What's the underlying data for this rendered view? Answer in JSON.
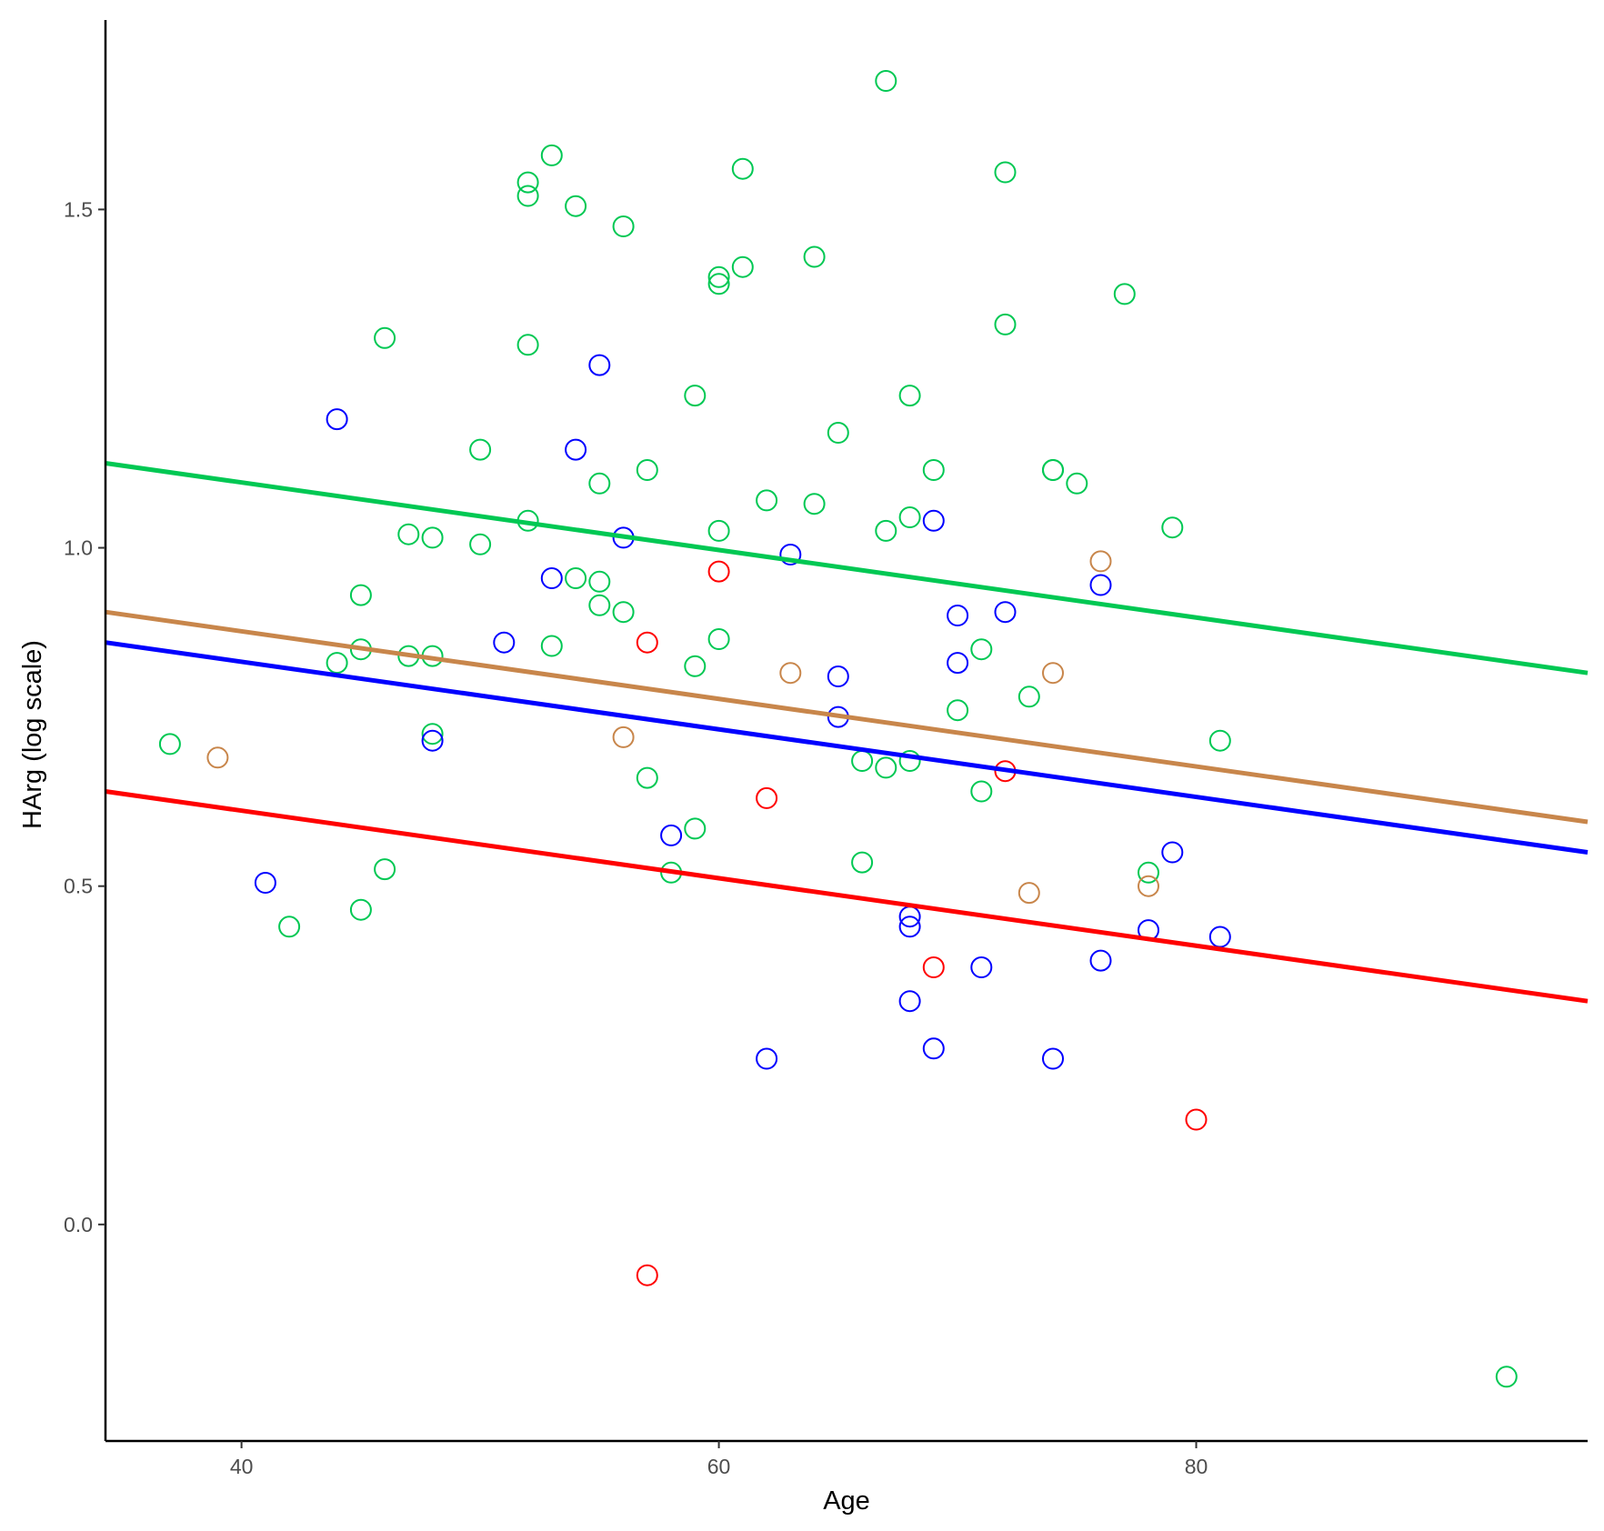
{
  "chart_data": {
    "type": "scatter",
    "title": "",
    "xlabel": "Age",
    "ylabel": "HArg (log scale)",
    "xlim": [
      34.3,
      96.4
    ],
    "ylim": [
      -0.32,
      1.78
    ],
    "x_ticks": [
      {
        "value": 40,
        "label": "40"
      },
      {
        "value": 60,
        "label": "60"
      },
      {
        "value": 80,
        "label": "80"
      }
    ],
    "y_ticks": [
      {
        "value": 0.0,
        "label": "0.0"
      },
      {
        "value": 0.5,
        "label": "0.5"
      },
      {
        "value": 1.0,
        "label": "1.0"
      },
      {
        "value": 1.5,
        "label": "1.5"
      }
    ],
    "grid": false,
    "legend": "none",
    "series": [
      {
        "color": "#00c853",
        "marker": "open-circle",
        "points": [
          [
            37,
            0.71
          ],
          [
            42,
            0.44
          ],
          [
            44,
            0.83
          ],
          [
            45,
            0.93
          ],
          [
            45,
            0.85
          ],
          [
            45,
            0.465
          ],
          [
            46,
            1.31
          ],
          [
            46,
            0.525
          ],
          [
            47,
            1.02
          ],
          [
            47,
            0.84
          ],
          [
            48,
            1.015
          ],
          [
            48,
            0.84
          ],
          [
            48,
            0.725
          ],
          [
            50,
            1.145
          ],
          [
            50,
            1.005
          ],
          [
            52,
            1.54
          ],
          [
            52,
            1.52
          ],
          [
            52,
            1.3
          ],
          [
            52,
            1.04
          ],
          [
            53,
            1.58
          ],
          [
            53,
            0.855
          ],
          [
            54,
            1.505
          ],
          [
            54,
            0.955
          ],
          [
            55,
            1.095
          ],
          [
            55,
            0.95
          ],
          [
            55,
            0.915
          ],
          [
            56,
            1.475
          ],
          [
            56,
            0.905
          ],
          [
            57,
            1.115
          ],
          [
            57,
            0.66
          ],
          [
            58,
            0.52
          ],
          [
            59,
            1.225
          ],
          [
            59,
            0.825
          ],
          [
            59,
            0.585
          ],
          [
            60,
            1.4
          ],
          [
            60,
            1.39
          ],
          [
            60,
            1.025
          ],
          [
            60,
            0.865
          ],
          [
            61,
            1.56
          ],
          [
            61,
            1.415
          ],
          [
            62,
            1.07
          ],
          [
            64,
            1.43
          ],
          [
            64,
            1.065
          ],
          [
            65,
            1.17
          ],
          [
            66,
            0.685
          ],
          [
            66,
            0.535
          ],
          [
            67,
            1.69
          ],
          [
            67,
            1.025
          ],
          [
            67,
            0.675
          ],
          [
            68,
            1.225
          ],
          [
            68,
            1.045
          ],
          [
            68,
            0.685
          ],
          [
            69,
            1.115
          ],
          [
            70,
            0.76
          ],
          [
            71,
            0.85
          ],
          [
            71,
            0.64
          ],
          [
            72,
            1.555
          ],
          [
            72,
            1.33
          ],
          [
            73,
            0.78
          ],
          [
            74,
            1.115
          ],
          [
            74,
            1.115
          ],
          [
            75,
            1.095
          ],
          [
            77,
            1.375
          ],
          [
            78,
            0.52
          ],
          [
            79,
            1.03
          ],
          [
            81,
            0.715
          ],
          [
            93,
            -0.225
          ]
        ]
      },
      {
        "color": "#ff0000",
        "marker": "open-circle",
        "points": [
          [
            57,
            0.86
          ],
          [
            57,
            -0.075
          ],
          [
            60,
            0.965
          ],
          [
            62,
            0.63
          ],
          [
            69,
            0.38
          ],
          [
            72,
            0.67
          ],
          [
            80,
            0.155
          ]
        ]
      },
      {
        "color": "#0000ff",
        "marker": "open-circle",
        "points": [
          [
            41,
            0.505
          ],
          [
            44,
            1.19
          ],
          [
            48,
            0.715
          ],
          [
            51,
            0.86
          ],
          [
            53,
            0.955
          ],
          [
            54,
            1.145
          ],
          [
            55,
            1.27
          ],
          [
            56,
            1.015
          ],
          [
            58,
            0.575
          ],
          [
            62,
            0.245
          ],
          [
            63,
            0.99
          ],
          [
            65,
            0.81
          ],
          [
            65,
            0.75
          ],
          [
            68,
            0.455
          ],
          [
            68,
            0.44
          ],
          [
            68,
            0.33
          ],
          [
            69,
            1.04
          ],
          [
            69,
            0.26
          ],
          [
            70,
            0.9
          ],
          [
            70,
            0.83
          ],
          [
            71,
            0.38
          ],
          [
            72,
            0.905
          ],
          [
            74,
            0.245
          ],
          [
            76,
            0.945
          ],
          [
            76,
            0.39
          ],
          [
            78,
            0.435
          ],
          [
            79,
            0.55
          ],
          [
            81,
            0.425
          ]
        ]
      },
      {
        "color": "#c8864b",
        "marker": "open-circle",
        "points": [
          [
            39,
            0.69
          ],
          [
            56,
            0.72
          ],
          [
            63,
            0.815
          ],
          [
            73,
            0.49
          ],
          [
            74,
            0.815
          ],
          [
            76,
            0.98
          ],
          [
            78,
            0.5
          ]
        ]
      }
    ],
    "fit_lines": [
      {
        "color": "#00c853",
        "x": [
          34.3,
          96.4
        ],
        "y": [
          1.125,
          0.815
        ]
      },
      {
        "color": "#c8864b",
        "x": [
          34.3,
          96.4
        ],
        "y": [
          0.905,
          0.595
        ]
      },
      {
        "color": "#0000ff",
        "x": [
          34.3,
          96.4
        ],
        "y": [
          0.86,
          0.55
        ]
      },
      {
        "color": "#ff0000",
        "x": [
          34.3,
          96.4
        ],
        "y": [
          0.64,
          0.33
        ]
      }
    ]
  }
}
